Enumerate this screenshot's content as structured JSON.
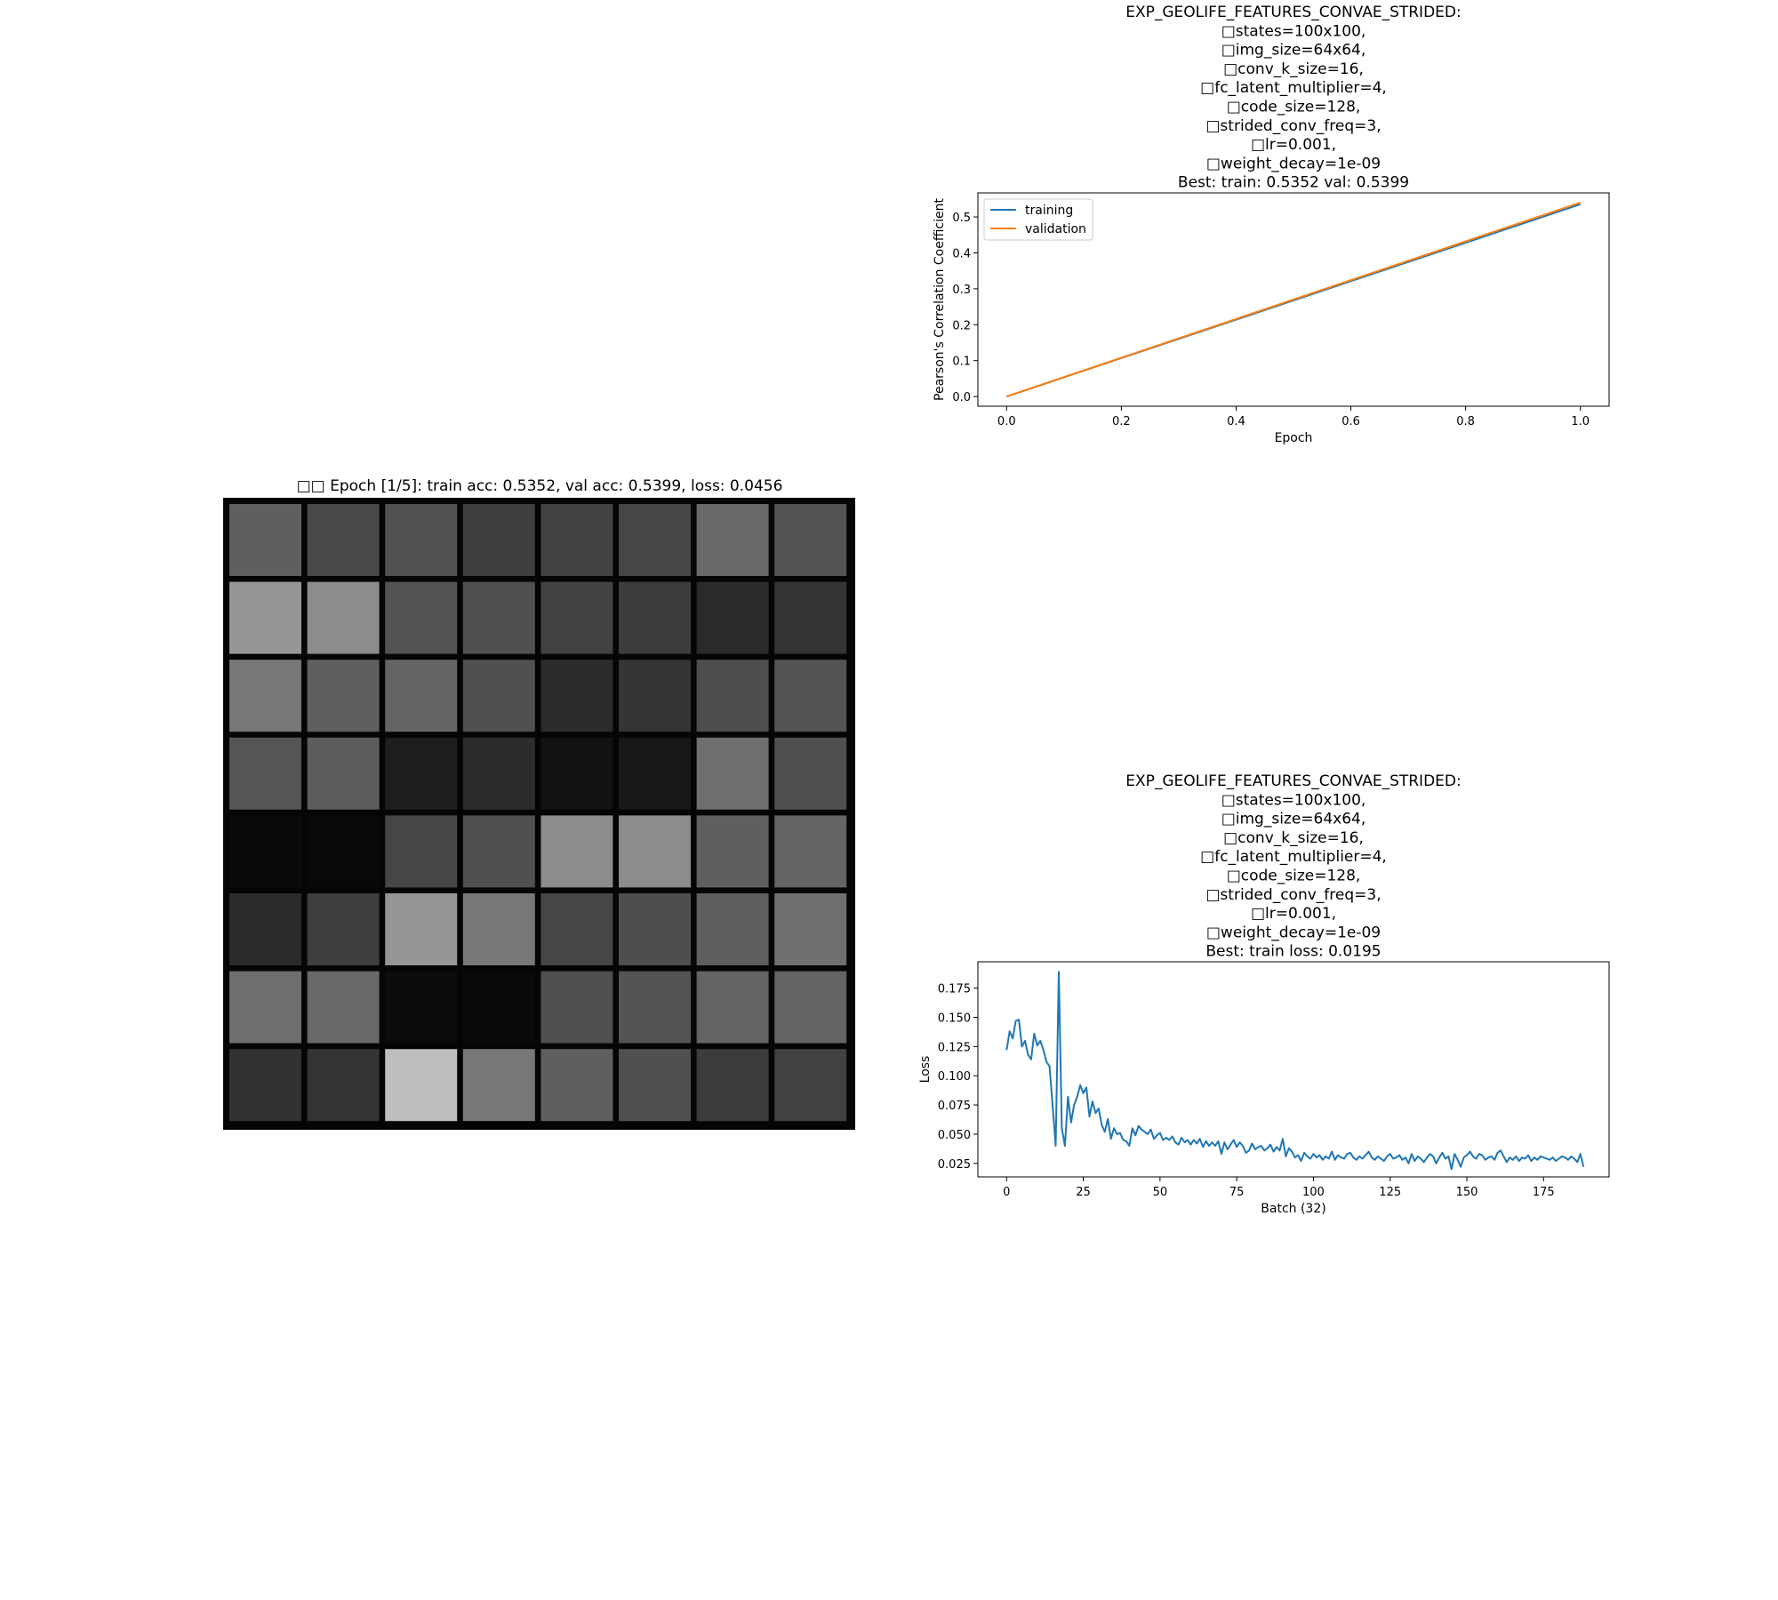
{
  "grid_panel": {
    "title": "□□ Epoch [1/5]: train acc: 0.5352, val acc: 0.5399, loss: 0.0456",
    "rows": 8,
    "cols": 8,
    "tile_gray_levels": [
      [
        95,
        72,
        82,
        62,
        66,
        70,
        105,
        84
      ],
      [
        150,
        140,
        84,
        80,
        66,
        60,
        42,
        52
      ],
      [
        120,
        95,
        100,
        80,
        44,
        52,
        78,
        84
      ],
      [
        85,
        92,
        30,
        44,
        18,
        24,
        110,
        80
      ],
      [
        10,
        8,
        70,
        80,
        140,
        140,
        95,
        100
      ],
      [
        42,
        62,
        150,
        120,
        70,
        78,
        95,
        112
      ],
      [
        110,
        105,
        12,
        10,
        80,
        84,
        100,
        100
      ],
      [
        50,
        52,
        190,
        120,
        95,
        80,
        60,
        66
      ]
    ]
  },
  "chart_data": [
    {
      "type": "line",
      "title": "EXP_GEOLIFE_FEATURES_CONVAE_STRIDED:\n□states=100x100,\n□img_size=64x64,\n□conv_k_size=16,\n□fc_latent_multiplier=4,\n□code_size=128,\n□strided_conv_freq=3,\n□lr=0.001,\n□weight_decay=1e-09\nBest: train: 0.5352 val: 0.5399",
      "xlabel": "Epoch",
      "ylabel": "Pearson's Correlation Coefficient",
      "xlim": [
        -0.05,
        1.05
      ],
      "ylim": [
        -0.027,
        0.567
      ],
      "xticks": [
        0.0,
        0.2,
        0.4,
        0.6,
        0.8,
        1.0
      ],
      "xtick_labels": [
        "0.0",
        "0.2",
        "0.4",
        "0.6",
        "0.8",
        "1.0"
      ],
      "yticks": [
        0.0,
        0.1,
        0.2,
        0.3,
        0.4,
        0.5
      ],
      "ytick_labels": [
        "0.0",
        "0.1",
        "0.2",
        "0.3",
        "0.4",
        "0.5"
      ],
      "grid": false,
      "legend": "upper-left",
      "series": [
        {
          "name": "training",
          "color": "#1f77b4",
          "x": [
            0,
            1
          ],
          "y": [
            0.0,
            0.5352
          ]
        },
        {
          "name": "validation",
          "color": "#ff7f0e",
          "x": [
            0,
            1
          ],
          "y": [
            0.0,
            0.5399
          ]
        }
      ]
    },
    {
      "type": "line",
      "title": "EXP_GEOLIFE_FEATURES_CONVAE_STRIDED:\n□states=100x100,\n□img_size=64x64,\n□conv_k_size=16,\n□fc_latent_multiplier=4,\n□code_size=128,\n□strided_conv_freq=3,\n□lr=0.001,\n□weight_decay=1e-09\nBest: train loss: 0.0195",
      "xlabel": "Batch (32)",
      "ylabel": "Loss",
      "xlim": [
        -9.35,
        196.35
      ],
      "ylim": [
        0.0134,
        0.1976
      ],
      "xticks": [
        0,
        25,
        50,
        75,
        100,
        125,
        150,
        175
      ],
      "xtick_labels": [
        "0",
        "25",
        "50",
        "75",
        "100",
        "125",
        "150",
        "175"
      ],
      "yticks": [
        0.025,
        0.05,
        0.075,
        0.1,
        0.125,
        0.15,
        0.175
      ],
      "ytick_labels": [
        "0.025",
        "0.050",
        "0.075",
        "0.100",
        "0.125",
        "0.150",
        "0.175"
      ],
      "grid": false,
      "series": [
        {
          "color": "#1f77b4",
          "y": [
            0.122,
            0.138,
            0.132,
            0.147,
            0.148,
            0.125,
            0.13,
            0.118,
            0.114,
            0.136,
            0.126,
            0.13,
            0.122,
            0.112,
            0.108,
            0.075,
            0.04,
            0.189,
            0.055,
            0.04,
            0.082,
            0.06,
            0.075,
            0.082,
            0.092,
            0.085,
            0.09,
            0.065,
            0.078,
            0.068,
            0.072,
            0.058,
            0.052,
            0.063,
            0.046,
            0.055,
            0.05,
            0.051,
            0.045,
            0.044,
            0.04,
            0.055,
            0.049,
            0.057,
            0.054,
            0.052,
            0.05,
            0.054,
            0.046,
            0.049,
            0.051,
            0.045,
            0.047,
            0.045,
            0.048,
            0.043,
            0.041,
            0.047,
            0.043,
            0.045,
            0.041,
            0.045,
            0.042,
            0.046,
            0.039,
            0.044,
            0.04,
            0.043,
            0.04,
            0.044,
            0.033,
            0.043,
            0.037,
            0.041,
            0.045,
            0.039,
            0.043,
            0.04,
            0.034,
            0.036,
            0.042,
            0.037,
            0.039,
            0.04,
            0.036,
            0.038,
            0.041,
            0.035,
            0.039,
            0.036,
            0.046,
            0.031,
            0.038,
            0.035,
            0.03,
            0.032,
            0.027,
            0.034,
            0.031,
            0.029,
            0.033,
            0.03,
            0.032,
            0.028,
            0.031,
            0.029,
            0.035,
            0.028,
            0.032,
            0.03,
            0.029,
            0.033,
            0.034,
            0.03,
            0.028,
            0.031,
            0.029,
            0.032,
            0.035,
            0.03,
            0.028,
            0.031,
            0.029,
            0.027,
            0.031,
            0.033,
            0.029,
            0.03,
            0.032,
            0.028,
            0.03,
            0.025,
            0.033,
            0.027,
            0.031,
            0.029,
            0.026,
            0.03,
            0.033,
            0.031,
            0.025,
            0.03,
            0.034,
            0.029,
            0.031,
            0.02,
            0.033,
            0.028,
            0.022,
            0.03,
            0.032,
            0.035,
            0.031,
            0.029,
            0.033,
            0.032,
            0.028,
            0.03,
            0.031,
            0.028,
            0.034,
            0.036,
            0.031,
            0.026,
            0.03,
            0.028,
            0.031,
            0.027,
            0.03,
            0.029,
            0.032,
            0.027,
            0.03,
            0.028,
            0.031,
            0.03,
            0.029,
            0.028,
            0.03,
            0.027,
            0.029,
            0.031,
            0.03,
            0.028,
            0.031,
            0.029,
            0.026,
            0.033,
            0.022
          ]
        }
      ]
    }
  ]
}
